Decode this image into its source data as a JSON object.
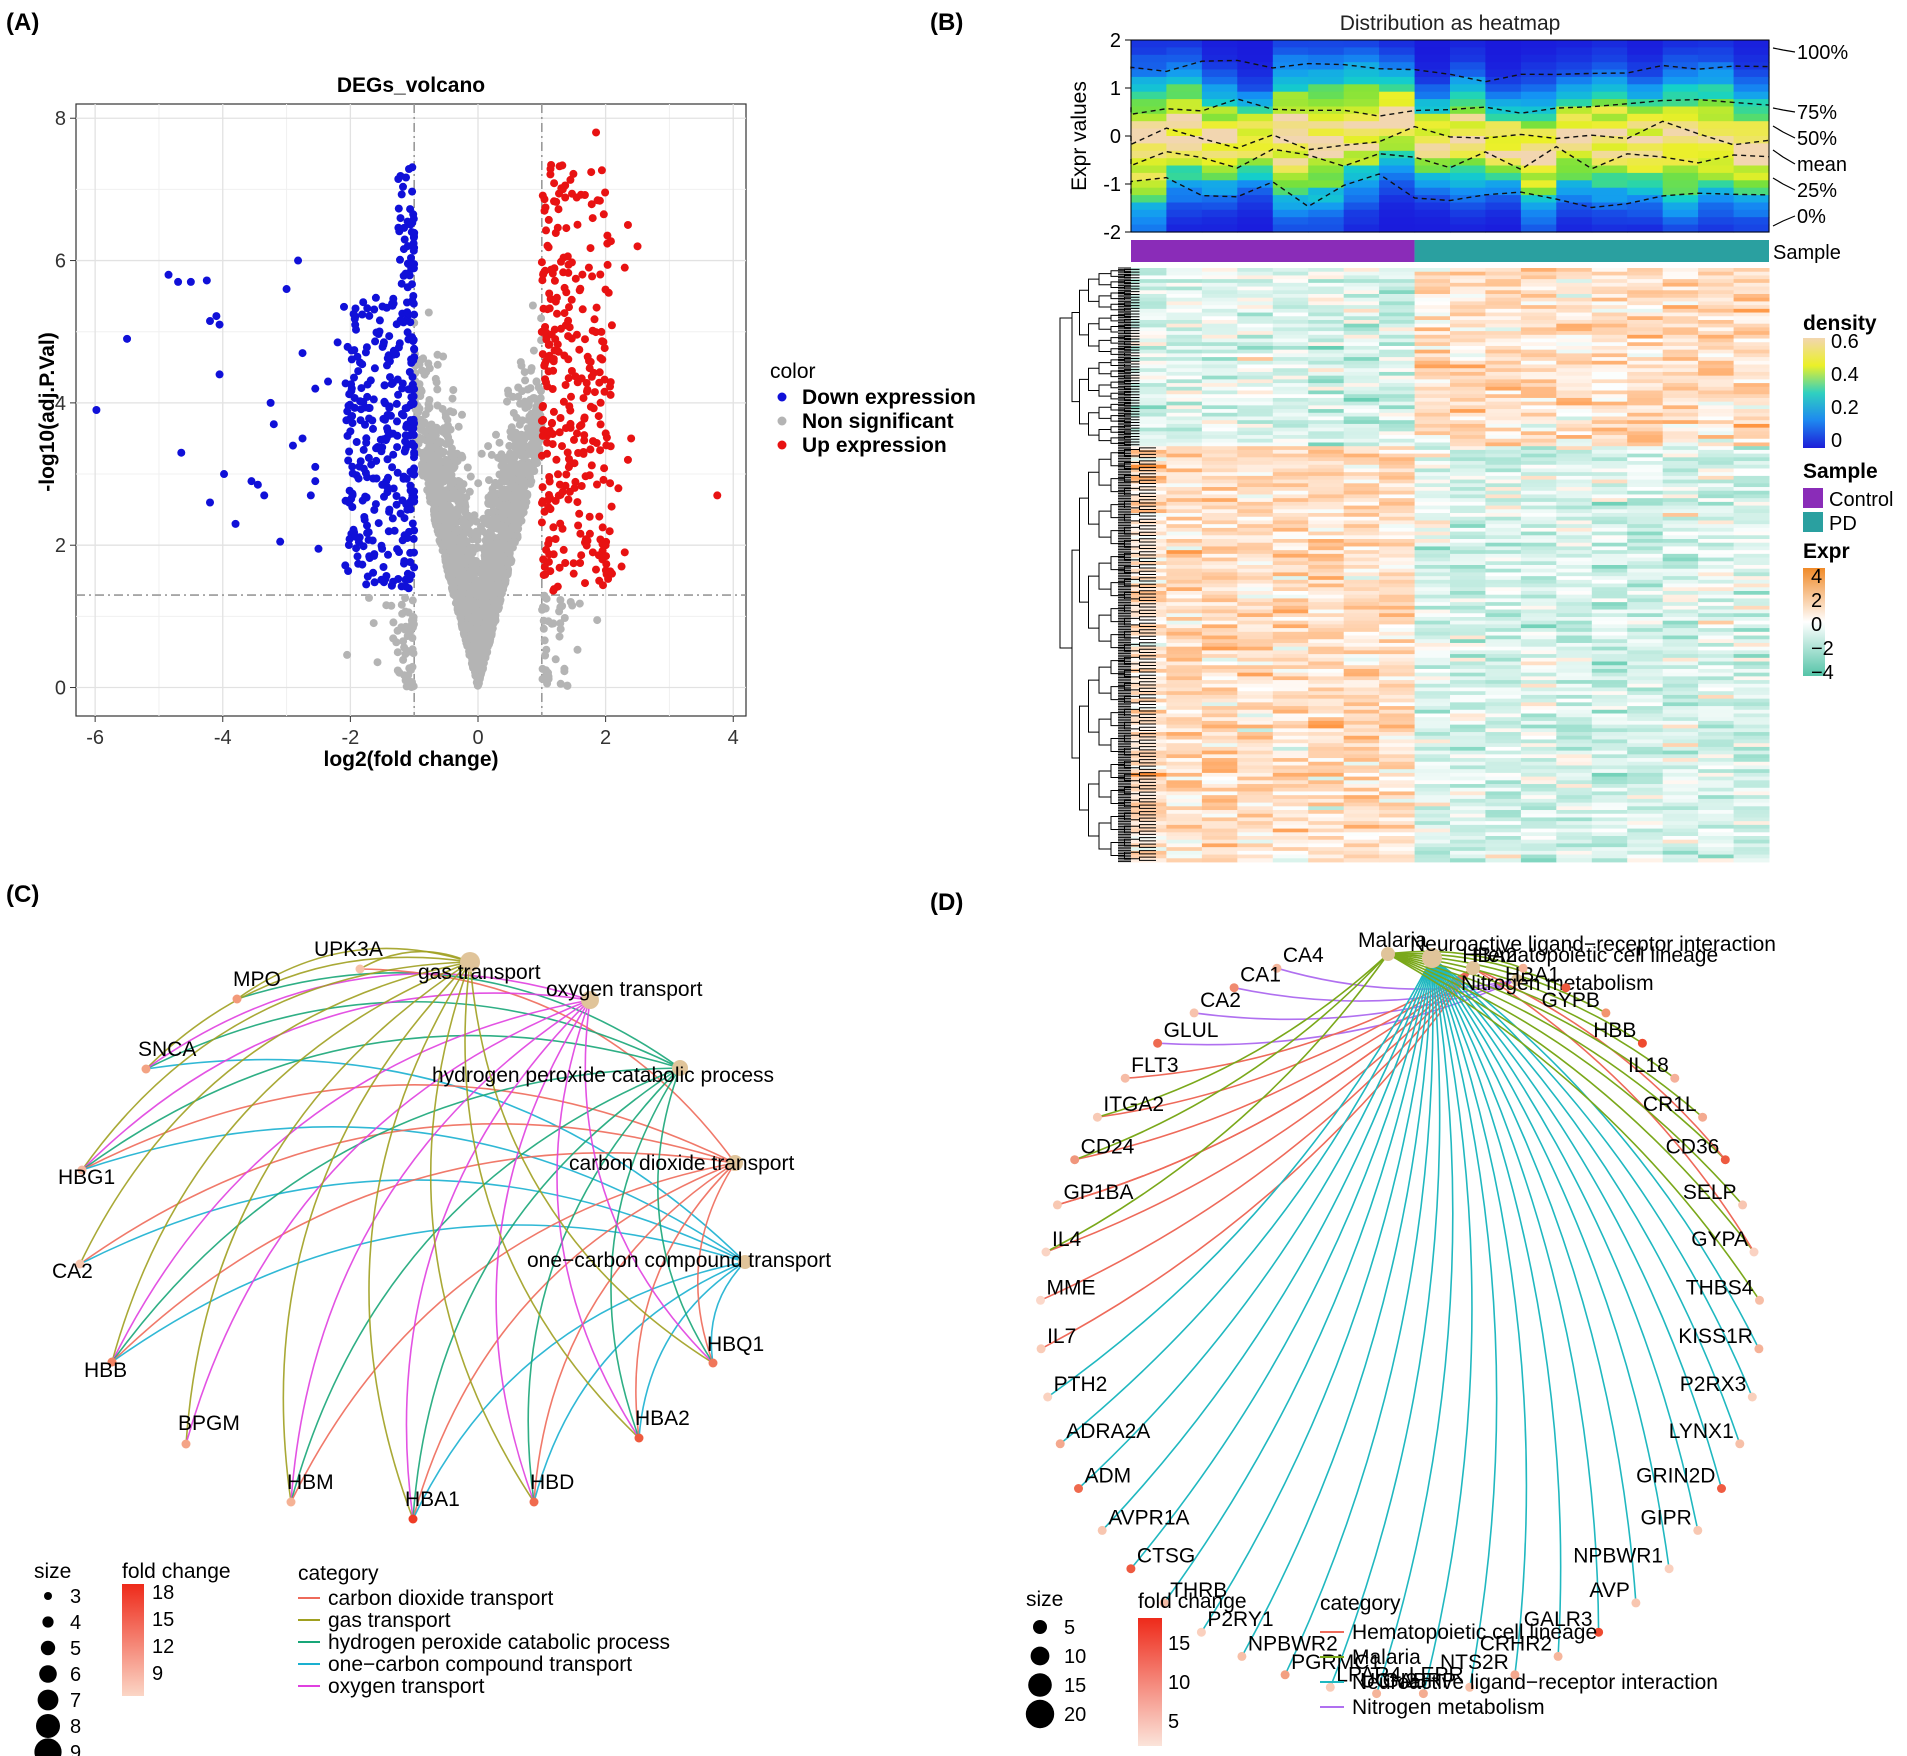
{
  "chart_data": [
    {
      "panel": "(A)",
      "type": "scatter",
      "title": "DEGs_volcano",
      "xlabel": "log2(fold change)",
      "ylabel": "-log10(adj.P.Val)",
      "xlim": [
        -6.3,
        4.2
      ],
      "ylim": [
        -0.4,
        8.2
      ],
      "xticks": [
        -6,
        -4,
        -2,
        0,
        2,
        4
      ],
      "yticks": [
        0,
        2,
        4,
        6,
        8
      ],
      "thresholds": {
        "logfc": [
          -1,
          1
        ],
        "neglog10p": 1.3
      },
      "legend": {
        "title": "color",
        "entries": [
          {
            "label": "Down expression",
            "color": "#1010d8"
          },
          {
            "label": "Non significant",
            "color": "#b4b4b4"
          },
          {
            "label": "Up expression",
            "color": "#e81212"
          }
        ]
      },
      "outlier_points": {
        "down": [
          [
            -5.98,
            3.9
          ],
          [
            -5.5,
            4.9
          ],
          [
            -4.85,
            5.8
          ],
          [
            -4.7,
            5.7
          ],
          [
            -4.5,
            5.7
          ],
          [
            -4.25,
            5.72
          ],
          [
            -4.2,
            5.15
          ],
          [
            -4.1,
            5.22
          ],
          [
            -4.05,
            5.1
          ],
          [
            -4.05,
            4.4
          ],
          [
            -3.98,
            3.0
          ],
          [
            -4.2,
            2.6
          ],
          [
            -4.65,
            3.3
          ],
          [
            -3.55,
            2.9
          ],
          [
            -3.45,
            2.85
          ],
          [
            -3.35,
            2.7
          ],
          [
            -3.25,
            4.0
          ],
          [
            -3.2,
            3.7
          ],
          [
            -3.1,
            2.05
          ],
          [
            -3.0,
            5.6
          ],
          [
            -2.82,
            6.0
          ],
          [
            -2.75,
            3.5
          ],
          [
            -2.75,
            4.7
          ],
          [
            -2.62,
            2.7
          ],
          [
            -2.55,
            2.9
          ],
          [
            -2.5,
            1.95
          ],
          [
            -2.55,
            3.1
          ],
          [
            -2.35,
            4.3
          ],
          [
            -2.2,
            4.85
          ],
          [
            -2.1,
            5.35
          ],
          [
            -2.55,
            4.2
          ],
          [
            -2.9,
            3.4
          ],
          [
            -3.8,
            2.3
          ],
          [
            -2.0,
            3.6
          ]
        ],
        "up": [
          [
            3.75,
            2.7
          ],
          [
            2.5,
            6.2
          ],
          [
            2.4,
            3.5
          ],
          [
            2.35,
            3.2
          ],
          [
            2.3,
            1.9
          ],
          [
            2.25,
            1.7
          ],
          [
            2.2,
            2.8
          ],
          [
            2.1,
            1.6
          ],
          [
            2.0,
            2.0
          ],
          [
            1.95,
            1.8
          ],
          [
            1.9,
            1.5
          ],
          [
            1.8,
            1.9
          ],
          [
            1.75,
            2.4
          ],
          [
            1.6,
            1.75
          ],
          [
            1.5,
            1.6
          ],
          [
            1.85,
            7.8
          ],
          [
            2.35,
            6.5
          ],
          [
            2.3,
            5.9
          ]
        ]
      },
      "volcano_cloud": {
        "n_nonsig": 2400,
        "n_down": 360,
        "n_up": 300
      }
    },
    {
      "panel": "(B)",
      "type": "heatmap",
      "title": "Distribution as heatmap",
      "top_ylabel": "Expr values",
      "top_yticks": [
        "2",
        "1",
        "0",
        "-1",
        "-2"
      ],
      "quantile_labels": [
        "100%",
        "75%",
        "50%",
        "mean",
        "25%",
        "0%"
      ],
      "annotation_label": "Sample",
      "groups": [
        {
          "name": "Control",
          "n": 8,
          "color": "#8a2cb8"
        },
        {
          "name": "PD",
          "n": 10,
          "color": "#2aa0a0"
        }
      ],
      "legend_density": {
        "title": "density",
        "ticks": [
          "0.6",
          "0.4",
          "0.2",
          "0"
        ]
      },
      "legend_sample": {
        "title": "Sample",
        "entries": [
          "Control",
          "PD"
        ]
      },
      "legend_expr": {
        "title": "Expr",
        "ticks": [
          "4",
          "2",
          "0",
          "−2",
          "−4"
        ]
      },
      "n_rows": 160,
      "upregulated_fraction": 0.3
    },
    {
      "panel": "(C)",
      "type": "network",
      "category_nodes": [
        {
          "label": "gas transport"
        },
        {
          "label": "oxygen transport"
        },
        {
          "label": "hydrogen peroxide catabolic process"
        },
        {
          "label": "carbon dioxide transport"
        },
        {
          "label": "one−carbon compound transport"
        }
      ],
      "gene_nodes": [
        "MPO",
        "UPK3A",
        "SNCA",
        "HBG1",
        "CA2",
        "HBB",
        "BPGM",
        "HBM",
        "HBA1",
        "HBD",
        "HBA2",
        "HBQ1"
      ],
      "legend_size": {
        "title": "size",
        "values": [
          "3",
          "4",
          "5",
          "6",
          "7",
          "8",
          "9"
        ]
      },
      "legend_fc": {
        "title": "fold change",
        "ticks": [
          "18",
          "15",
          "12",
          "9"
        ]
      },
      "legend_category": {
        "title": "category",
        "entries": [
          {
            "label": "carbon dioxide transport",
            "color": "#ee6a5a"
          },
          {
            "label": "gas transport",
            "color": "#a0a020"
          },
          {
            "label": "hydrogen peroxide catabolic process",
            "color": "#18a678"
          },
          {
            "label": "one−carbon compound transport",
            "color": "#1ab0d0"
          },
          {
            "label": "oxygen transport",
            "color": "#e040e0"
          }
        ]
      }
    },
    {
      "panel": "(D)",
      "type": "network",
      "category_nodes": [
        {
          "label": "Malaria"
        },
        {
          "label": "Neuroactive ligand−receptor interaction"
        },
        {
          "label": "Hematopoietic cell lineage"
        },
        {
          "label": "Nitrogen metabolism"
        }
      ],
      "gene_nodes": [
        "CA4",
        "CA1",
        "CA2",
        "GLUL",
        "FLT3",
        "ITGA2",
        "CD24",
        "GP1BA",
        "IL4",
        "MME",
        "IL7",
        "PTH2",
        "ADRA2A",
        "ADM",
        "AVPR1A",
        "CTSG",
        "THRB",
        "P2RY1",
        "NPBWR2",
        "PGRMC1",
        "LPAR4",
        "GABRP",
        "UCN2",
        "LEPR",
        "NTS2R",
        "CRHR2",
        "GALR3",
        "AVP",
        "NPBWR1",
        "GIPR",
        "GRIN2D",
        "LYNX1",
        "P2RX3",
        "KISS1R",
        "THBS4",
        "GYPA",
        "SELP",
        "CD36",
        "CR1L",
        "IL18",
        "HBB",
        "GYPB",
        "HBA1",
        "HBA2"
      ],
      "legend_size": {
        "title": "size",
        "values": [
          "5",
          "10",
          "15",
          "20"
        ]
      },
      "legend_fc": {
        "title": "fold change",
        "ticks": [
          "15",
          "10",
          "5"
        ]
      },
      "legend_category": {
        "title": "category",
        "entries": [
          {
            "label": "Hematopoietic cell lineage",
            "color": "#ee6a5a"
          },
          {
            "label": "Malaria",
            "color": "#7aa81a"
          },
          {
            "label": "Neuroactive ligand−receptor interaction",
            "color": "#20b8c0"
          },
          {
            "label": "Nitrogen metabolism",
            "color": "#b070f0"
          }
        ]
      }
    }
  ],
  "panels": [
    "(A)",
    "(B)",
    "(C)",
    "(D)"
  ]
}
